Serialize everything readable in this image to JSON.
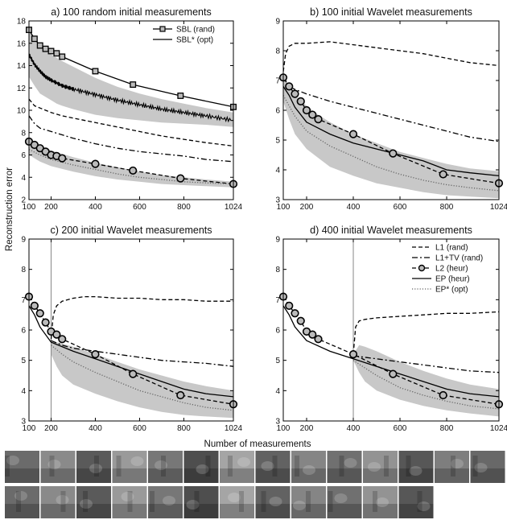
{
  "figure": {
    "ylabel": "Reconstruction error",
    "xlabel": "Number of measurements"
  },
  "colors": {
    "band": "#c8c8c8",
    "line": "#000000",
    "dotted": "#666666",
    "vline": "#888888"
  },
  "chart_data": [
    {
      "type": "line",
      "title": "a) 100 random initial measurements",
      "xlim": [
        100,
        1024
      ],
      "ylim": [
        2,
        18
      ],
      "xticks": [
        100,
        200,
        400,
        600,
        800,
        1024
      ],
      "yticks": [
        2,
        4,
        6,
        8,
        10,
        12,
        14,
        16,
        18
      ],
      "legend": "top-right",
      "band": {
        "x": [
          100,
          125,
          150,
          175,
          200,
          225,
          250,
          300,
          400,
          500,
          600,
          700,
          800,
          900,
          1024
        ],
        "lower": [
          13.0,
          12.2,
          11.5,
          11.2,
          10.9,
          10.6,
          10.4,
          10.1,
          9.6,
          9.3,
          9.1,
          8.9,
          8.8,
          8.7,
          8.5
        ],
        "upper": [
          17.3,
          16.5,
          15.7,
          15.3,
          15.0,
          14.7,
          14.4,
          13.9,
          12.9,
          12.1,
          11.5,
          11.0,
          10.6,
          10.2,
          9.8
        ]
      },
      "series": [
        {
          "name": "SBL (rand)",
          "style": "solid-square",
          "x": [
            100,
            125,
            150,
            175,
            200,
            225,
            250,
            400,
            570,
            785,
            1024
          ],
          "y": [
            17.2,
            16.4,
            15.8,
            15.5,
            15.3,
            15.1,
            14.8,
            13.5,
            12.3,
            11.3,
            10.3
          ]
        },
        {
          "name": "SBL* (opt)",
          "style": "solid-noisy",
          "x": [
            100,
            125,
            150,
            175,
            200,
            250,
            300,
            400,
            500,
            600,
            700,
            800,
            900,
            1024
          ],
          "y": [
            15.0,
            14.1,
            13.5,
            13.0,
            12.7,
            12.2,
            11.9,
            11.4,
            10.9,
            10.5,
            10.1,
            9.8,
            9.5,
            9.1
          ]
        },
        {
          "style": "dashed",
          "x": [
            100,
            125,
            150,
            200,
            250,
            300,
            400,
            500,
            600,
            700,
            800,
            900,
            1024
          ],
          "y": [
            11.0,
            10.4,
            10.2,
            9.8,
            9.5,
            9.3,
            8.9,
            8.5,
            8.1,
            7.7,
            7.4,
            7.1,
            6.8
          ]
        },
        {
          "style": "dashdot",
          "x": [
            100,
            125,
            150,
            200,
            250,
            300,
            400,
            500,
            600,
            700,
            800,
            900,
            1024
          ],
          "y": [
            9.5,
            8.8,
            8.4,
            8.1,
            7.8,
            7.5,
            7.0,
            6.6,
            6.3,
            6.1,
            5.9,
            5.6,
            5.4
          ]
        },
        {
          "style": "dashed-circle",
          "x": [
            100,
            125,
            150,
            175,
            200,
            225,
            250,
            400,
            570,
            785,
            1024
          ],
          "y": [
            7.2,
            6.9,
            6.6,
            6.3,
            6.0,
            5.9,
            5.7,
            5.2,
            4.6,
            3.9,
            3.4
          ]
        },
        {
          "style": "dotted",
          "x": [
            100,
            150,
            200,
            300,
            400,
            500,
            600,
            700,
            800,
            900,
            1024
          ],
          "y": [
            6.5,
            6.0,
            5.6,
            5.1,
            4.7,
            4.3,
            4.0,
            3.8,
            3.6,
            3.5,
            3.4
          ]
        }
      ],
      "band2": {
        "x": [
          100,
          150,
          200,
          300,
          400,
          500,
          600,
          700,
          800,
          900,
          1024
        ],
        "lower": [
          6.0,
          5.4,
          5.0,
          4.5,
          4.1,
          3.8,
          3.6,
          3.4,
          3.3,
          3.2,
          3.1
        ],
        "upper": [
          7.4,
          6.8,
          6.4,
          5.8,
          5.3,
          4.9,
          4.5,
          4.2,
          4.0,
          3.8,
          3.6
        ]
      }
    },
    {
      "type": "line",
      "title": "b) 100 initial Wavelet measurements",
      "xlim": [
        100,
        1024
      ],
      "ylim": [
        3,
        9
      ],
      "xticks": [
        100,
        200,
        400,
        600,
        800,
        1024
      ],
      "yticks": [
        3,
        4,
        5,
        6,
        7,
        8,
        9
      ],
      "band": {
        "x": [
          100,
          125,
          150,
          200,
          250,
          300,
          400,
          500,
          600,
          700,
          800,
          900,
          1024
        ],
        "lower": [
          6.3,
          5.7,
          5.2,
          4.7,
          4.4,
          4.1,
          3.8,
          3.55,
          3.4,
          3.25,
          3.15,
          3.1,
          3.05
        ],
        "upper": [
          7.1,
          6.8,
          6.5,
          6.15,
          5.85,
          5.6,
          5.2,
          4.9,
          4.6,
          4.4,
          4.2,
          4.05,
          3.95
        ]
      },
      "series": [
        {
          "style": "dashed",
          "x": [
            100,
            110,
            125,
            150,
            200,
            300,
            400,
            500,
            600,
            700,
            800,
            900,
            1024
          ],
          "y": [
            7.3,
            7.9,
            8.15,
            8.25,
            8.25,
            8.3,
            8.2,
            8.1,
            8.0,
            7.9,
            7.75,
            7.6,
            7.5
          ]
        },
        {
          "style": "dashdot",
          "x": [
            100,
            125,
            150,
            200,
            300,
            400,
            500,
            600,
            700,
            800,
            900,
            1024
          ],
          "y": [
            7.1,
            6.8,
            6.7,
            6.55,
            6.3,
            6.1,
            5.9,
            5.7,
            5.5,
            5.3,
            5.1,
            4.95
          ]
        },
        {
          "style": "dashed-circle",
          "x": [
            100,
            125,
            150,
            175,
            200,
            225,
            250,
            400,
            570,
            785,
            1024
          ],
          "y": [
            7.1,
            6.8,
            6.55,
            6.3,
            6.0,
            5.85,
            5.7,
            5.2,
            4.55,
            3.85,
            3.55
          ]
        },
        {
          "style": "solid",
          "x": [
            100,
            125,
            150,
            200,
            250,
            300,
            400,
            500,
            600,
            700,
            800,
            900,
            1024
          ],
          "y": [
            6.8,
            6.5,
            6.1,
            5.6,
            5.4,
            5.2,
            4.9,
            4.7,
            4.5,
            4.3,
            4.0,
            3.9,
            3.8
          ]
        },
        {
          "style": "dotted",
          "x": [
            100,
            150,
            200,
            300,
            400,
            500,
            600,
            700,
            800,
            900,
            1024
          ],
          "y": [
            6.5,
            5.8,
            5.3,
            4.8,
            4.45,
            4.1,
            3.85,
            3.65,
            3.5,
            3.4,
            3.3
          ]
        }
      ]
    },
    {
      "type": "line",
      "title": "c) 200 initial Wavelet measurements",
      "xlim": [
        100,
        1024
      ],
      "ylim": [
        3,
        9
      ],
      "xticks": [
        100,
        200,
        400,
        600,
        800,
        1024
      ],
      "yticks": [
        3,
        4,
        5,
        6,
        7,
        8,
        9
      ],
      "vline": 200,
      "band": {
        "x": [
          200,
          225,
          250,
          300,
          400,
          500,
          600,
          700,
          800,
          900,
          1024
        ],
        "lower": [
          5.2,
          4.8,
          4.5,
          4.2,
          3.9,
          3.65,
          3.45,
          3.3,
          3.2,
          3.15,
          3.1
        ],
        "upper": [
          5.6,
          5.6,
          5.55,
          5.45,
          5.2,
          4.95,
          4.7,
          4.5,
          4.3,
          4.15,
          4.0
        ]
      },
      "series": [
        {
          "style": "dashed",
          "x": [
            200,
            210,
            225,
            250,
            300,
            350,
            400,
            500,
            600,
            700,
            800,
            900,
            1024
          ],
          "y": [
            5.7,
            6.5,
            6.8,
            6.95,
            7.05,
            7.1,
            7.1,
            7.05,
            7.05,
            7.0,
            7.0,
            6.95,
            6.95
          ]
        },
        {
          "style": "dashdot",
          "x": [
            200,
            250,
            300,
            400,
            500,
            600,
            700,
            800,
            900,
            1024
          ],
          "y": [
            5.65,
            5.5,
            5.4,
            5.3,
            5.2,
            5.1,
            5.0,
            4.95,
            4.9,
            4.8
          ]
        },
        {
          "style": "dashed-circle",
          "x": [
            100,
            125,
            150,
            175,
            200,
            225,
            250,
            400,
            570,
            785,
            1024
          ],
          "y": [
            7.1,
            6.8,
            6.55,
            6.25,
            5.95,
            5.85,
            5.7,
            5.2,
            4.55,
            3.85,
            3.55
          ]
        },
        {
          "style": "solid",
          "x": [
            100,
            125,
            150,
            200,
            300,
            400,
            500,
            600,
            700,
            800,
            900,
            1024
          ],
          "y": [
            6.8,
            6.5,
            6.1,
            5.6,
            5.3,
            5.05,
            4.8,
            4.55,
            4.3,
            4.05,
            3.9,
            3.8
          ]
        },
        {
          "style": "dotted",
          "x": [
            200,
            250,
            300,
            400,
            500,
            600,
            700,
            800,
            900,
            1024
          ],
          "y": [
            5.5,
            5.2,
            4.95,
            4.6,
            4.3,
            4.0,
            3.8,
            3.6,
            3.45,
            3.35
          ]
        }
      ]
    },
    {
      "type": "line",
      "title": "d) 400 initial Wavelet measurements",
      "xlim": [
        100,
        1024
      ],
      "ylim": [
        3,
        9
      ],
      "xticks": [
        100,
        200,
        400,
        600,
        800,
        1024
      ],
      "yticks": [
        3,
        4,
        5,
        6,
        7,
        8,
        9
      ],
      "vline": 400,
      "legend": "top-right",
      "band": {
        "x": [
          400,
          425,
          450,
          500,
          600,
          700,
          800,
          900,
          1024
        ],
        "lower": [
          5.0,
          4.6,
          4.3,
          4.0,
          3.7,
          3.5,
          3.35,
          3.25,
          3.15
        ],
        "upper": [
          5.2,
          5.5,
          5.45,
          5.3,
          4.95,
          4.65,
          4.4,
          4.2,
          4.05
        ]
      },
      "series": [
        {
          "name": "L1 (rand)",
          "style": "dashed",
          "x": [
            400,
            410,
            425,
            450,
            500,
            600,
            700,
            800,
            900,
            1024
          ],
          "y": [
            5.2,
            6.1,
            6.3,
            6.35,
            6.4,
            6.45,
            6.5,
            6.55,
            6.55,
            6.6
          ]
        },
        {
          "name": "L1+TV (rand)",
          "style": "dashdot",
          "x": [
            400,
            450,
            500,
            600,
            700,
            800,
            900,
            1024
          ],
          "y": [
            5.15,
            5.1,
            5.05,
            4.95,
            4.85,
            4.75,
            4.65,
            4.6
          ]
        },
        {
          "name": "L2 (heur)",
          "style": "dashed-circle",
          "x": [
            100,
            125,
            150,
            175,
            200,
            225,
            250,
            400,
            570,
            785,
            1024
          ],
          "y": [
            7.1,
            6.8,
            6.55,
            6.3,
            5.95,
            5.85,
            5.7,
            5.2,
            4.55,
            3.85,
            3.55
          ]
        },
        {
          "name": "EP (heur)",
          "style": "solid",
          "x": [
            100,
            125,
            150,
            200,
            300,
            400,
            500,
            600,
            700,
            800,
            900,
            1024
          ],
          "y": [
            6.8,
            6.5,
            6.1,
            5.65,
            5.3,
            5.05,
            4.8,
            4.55,
            4.3,
            4.05,
            3.9,
            3.8
          ]
        },
        {
          "name": "EP* (opt)",
          "style": "dotted",
          "x": [
            400,
            450,
            500,
            600,
            700,
            800,
            900,
            1024
          ],
          "y": [
            5.0,
            4.75,
            4.5,
            4.1,
            3.85,
            3.65,
            3.5,
            3.4
          ]
        }
      ]
    }
  ]
}
